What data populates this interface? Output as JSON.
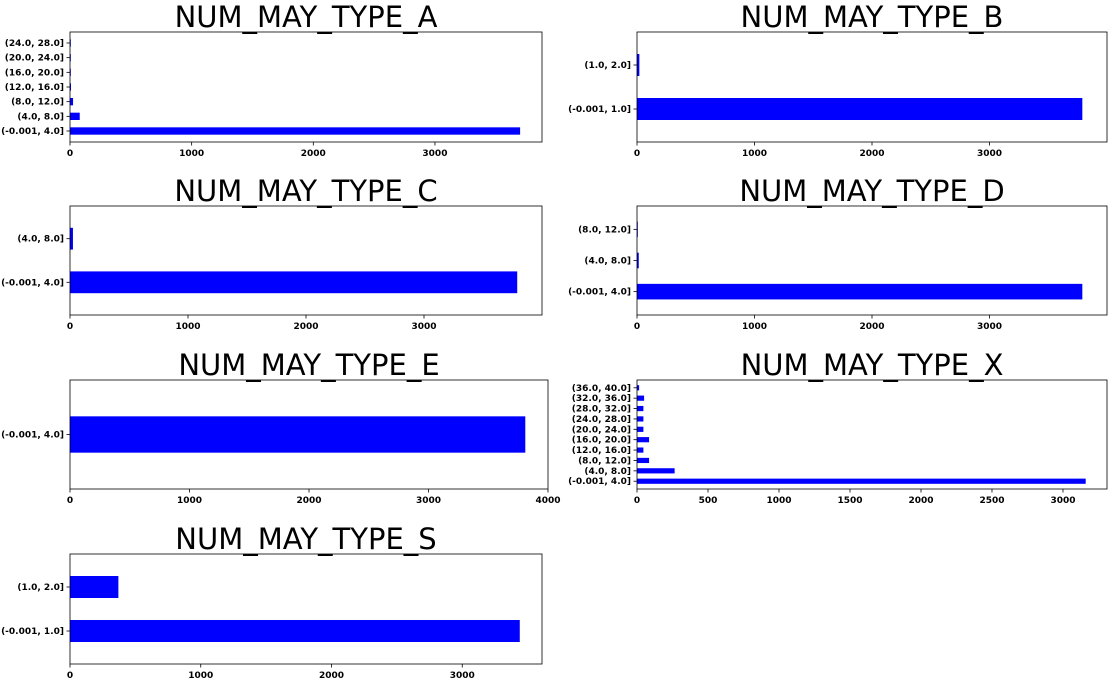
{
  "chart_data": [
    {
      "type": "bar",
      "orientation": "horizontal",
      "title": "NUM_MAY_TYPE_A",
      "categories": [
        "(-0.001, 4.0]",
        "(4.0, 8.0]",
        "(8.0, 12.0]",
        "(12.0, 16.0]",
        "(16.0, 20.0]",
        "(20.0, 24.0]",
        "(24.0, 28.0]"
      ],
      "values": [
        3700,
        80,
        25,
        8,
        5,
        3,
        2
      ],
      "xlim": [
        0,
        3880
      ],
      "xticks": [
        0,
        1000,
        2000,
        3000
      ],
      "color": "#0000ff",
      "grid": false
    },
    {
      "type": "bar",
      "orientation": "horizontal",
      "title": "NUM_MAY_TYPE_B",
      "categories": [
        "(-0.001, 1.0]",
        "(1.0, 2.0]"
      ],
      "values": [
        3790,
        20
      ],
      "xlim": [
        0,
        4000
      ],
      "xticks": [
        0,
        1000,
        2000,
        3000
      ],
      "color": "#0000ff",
      "grid": false
    },
    {
      "type": "bar",
      "orientation": "horizontal",
      "title": "NUM_MAY_TYPE_C",
      "categories": [
        "(-0.001, 4.0]",
        "(4.0, 8.0]"
      ],
      "values": [
        3790,
        25
      ],
      "xlim": [
        0,
        4000
      ],
      "xticks": [
        0,
        1000,
        2000,
        3000
      ],
      "color": "#0000ff",
      "grid": false
    },
    {
      "type": "bar",
      "orientation": "horizontal",
      "title": "NUM_MAY_TYPE_D",
      "categories": [
        "(-0.001, 4.0]",
        "(4.0, 8.0]",
        "(8.0, 12.0]"
      ],
      "values": [
        3790,
        15,
        2
      ],
      "xlim": [
        0,
        4000
      ],
      "xticks": [
        0,
        1000,
        2000,
        3000
      ],
      "color": "#0000ff",
      "grid": false
    },
    {
      "type": "bar",
      "orientation": "horizontal",
      "title": "NUM_MAY_TYPE_E",
      "categories": [
        "(-0.001, 4.0]"
      ],
      "values": [
        3810
      ],
      "xlim": [
        0,
        4000
      ],
      "xticks": [
        0,
        1000,
        2000,
        3000,
        4000
      ],
      "color": "#0000ff",
      "grid": false
    },
    {
      "type": "bar",
      "orientation": "horizontal",
      "title": "NUM_MAY_TYPE_X",
      "categories": [
        "(-0.001, 4.0]",
        "(4.0, 8.0]",
        "(8.0, 12.0]",
        "(12.0, 16.0]",
        "(16.0, 20.0]",
        "(20.0, 24.0]",
        "(24.0, 28.0]",
        "(28.0, 32.0]",
        "(32.0, 36.0]",
        "(36.0, 40.0]"
      ],
      "values": [
        3160,
        265,
        85,
        45,
        85,
        45,
        45,
        45,
        50,
        15
      ],
      "xlim": [
        0,
        3310
      ],
      "xticks": [
        0,
        500,
        1000,
        1500,
        2000,
        2500,
        3000
      ],
      "color": "#0000ff",
      "grid": false
    },
    {
      "type": "bar",
      "orientation": "horizontal",
      "title": "NUM_MAY_TYPE_S",
      "categories": [
        "(-0.001, 1.0]",
        "(1.0, 2.0]"
      ],
      "values": [
        3440,
        370
      ],
      "xlim": [
        0,
        3610
      ],
      "xticks": [
        0,
        1000,
        2000,
        3000
      ],
      "color": "#0000ff",
      "grid": false
    }
  ]
}
